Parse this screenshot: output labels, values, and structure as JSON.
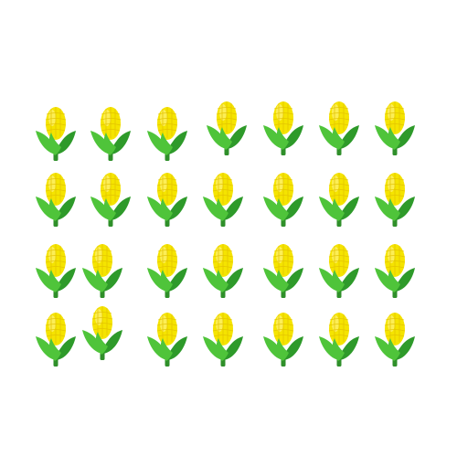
{
  "icon": "corn-cob-icon",
  "colors": {
    "kernel": "#f5e400",
    "kernel_highlight": "#fff27a",
    "kernel_line": "#e3c200",
    "husk_dark": "#2e9a2a",
    "husk_light": "#4fc43a",
    "stem": "#2f8f2a"
  },
  "rows": [
    {
      "count": 7
    },
    {
      "count": 7
    },
    {
      "count": 7
    },
    {
      "count": 7
    }
  ],
  "total": 28
}
